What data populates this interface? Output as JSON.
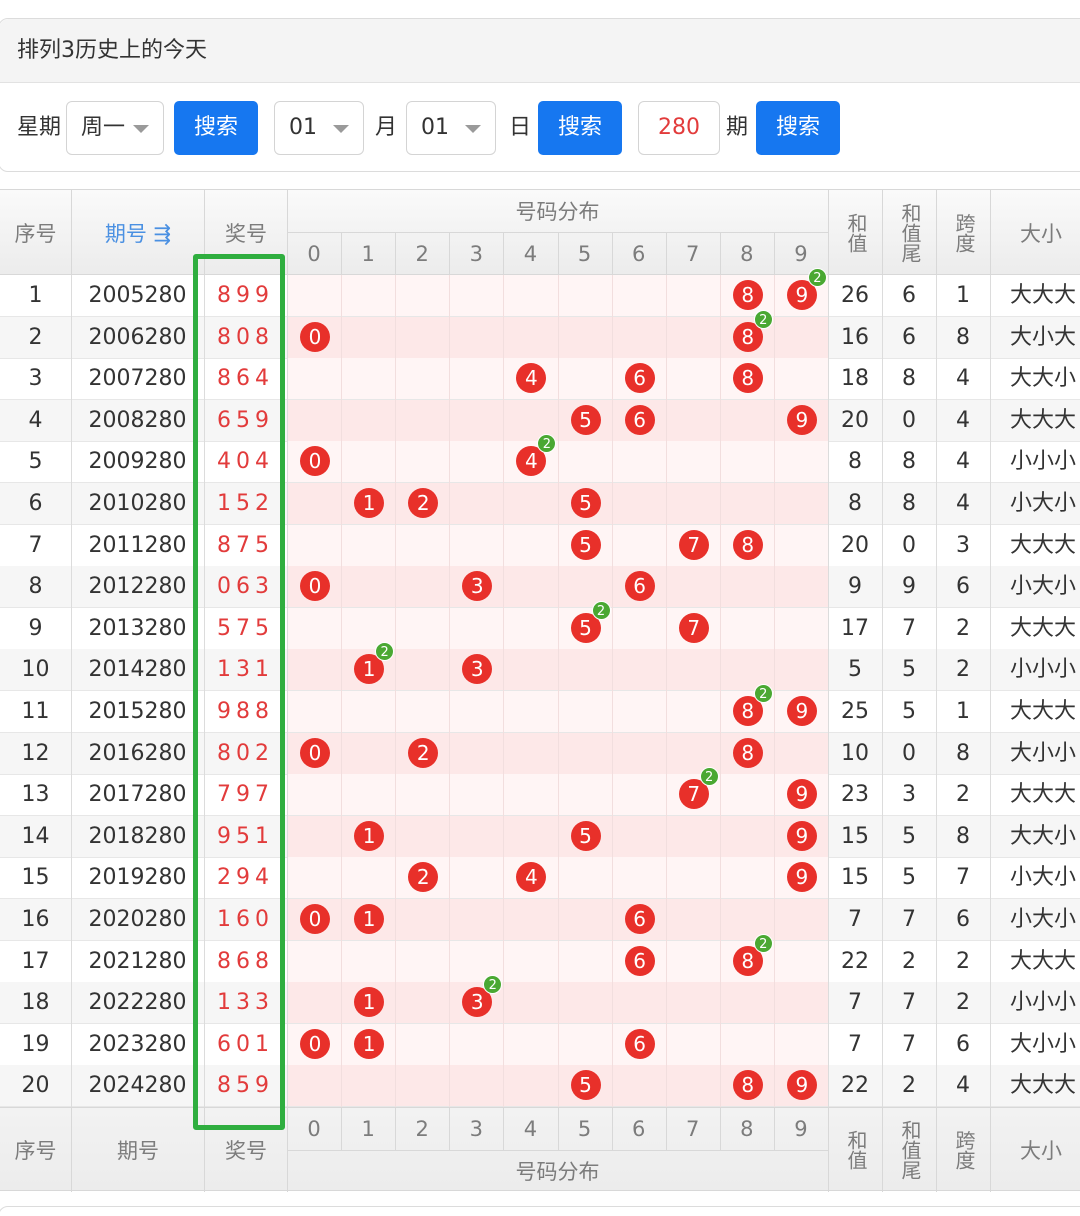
{
  "panel": {
    "title": "排列3历史上的今天",
    "week_label": "星期",
    "week_value": "周一",
    "search_label": "搜索",
    "month_value": "01",
    "month_label": "月",
    "day_value": "01",
    "day_label": "日",
    "issue_value": "280",
    "issue_label": "期"
  },
  "table": {
    "headers": {
      "seq": "序号",
      "issue": "期号 ⇶",
      "prize": "奖号",
      "dist": "号码分布",
      "sum": "和值",
      "sum_tail": "和值尾",
      "span": "跨度",
      "size": "大小"
    },
    "footers": {
      "seq": "序号",
      "issue": "期号",
      "prize": "奖号",
      "dist": "号码分布",
      "sum": "和值",
      "sum_tail": "和值尾",
      "span": "跨度",
      "size": "大小"
    },
    "digits": [
      "0",
      "1",
      "2",
      "3",
      "4",
      "5",
      "6",
      "7",
      "8",
      "9"
    ],
    "rows": [
      {
        "seq": "1",
        "issue": "2005280",
        "prize": "899",
        "sum": "26",
        "tail": "6",
        "span": "1",
        "size": "大大大"
      },
      {
        "seq": "2",
        "issue": "2006280",
        "prize": "808",
        "sum": "16",
        "tail": "6",
        "span": "8",
        "size": "大小大"
      },
      {
        "seq": "3",
        "issue": "2007280",
        "prize": "864",
        "sum": "18",
        "tail": "8",
        "span": "4",
        "size": "大大小"
      },
      {
        "seq": "4",
        "issue": "2008280",
        "prize": "659",
        "sum": "20",
        "tail": "0",
        "span": "4",
        "size": "大大大"
      },
      {
        "seq": "5",
        "issue": "2009280",
        "prize": "404",
        "sum": "8",
        "tail": "8",
        "span": "4",
        "size": "小小小"
      },
      {
        "seq": "6",
        "issue": "2010280",
        "prize": "152",
        "sum": "8",
        "tail": "8",
        "span": "4",
        "size": "小大小"
      },
      {
        "seq": "7",
        "issue": "2011280",
        "prize": "875",
        "sum": "20",
        "tail": "0",
        "span": "3",
        "size": "大大大"
      },
      {
        "seq": "8",
        "issue": "2012280",
        "prize": "063",
        "sum": "9",
        "tail": "9",
        "span": "6",
        "size": "小大小"
      },
      {
        "seq": "9",
        "issue": "2013280",
        "prize": "575",
        "sum": "17",
        "tail": "7",
        "span": "2",
        "size": "大大大"
      },
      {
        "seq": "10",
        "issue": "2014280",
        "prize": "131",
        "sum": "5",
        "tail": "5",
        "span": "2",
        "size": "小小小"
      },
      {
        "seq": "11",
        "issue": "2015280",
        "prize": "988",
        "sum": "25",
        "tail": "5",
        "span": "1",
        "size": "大大大"
      },
      {
        "seq": "12",
        "issue": "2016280",
        "prize": "802",
        "sum": "10",
        "tail": "0",
        "span": "8",
        "size": "大小小"
      },
      {
        "seq": "13",
        "issue": "2017280",
        "prize": "797",
        "sum": "23",
        "tail": "3",
        "span": "2",
        "size": "大大大"
      },
      {
        "seq": "14",
        "issue": "2018280",
        "prize": "951",
        "sum": "15",
        "tail": "5",
        "span": "8",
        "size": "大大小"
      },
      {
        "seq": "15",
        "issue": "2019280",
        "prize": "294",
        "sum": "15",
        "tail": "5",
        "span": "7",
        "size": "小大小"
      },
      {
        "seq": "16",
        "issue": "2020280",
        "prize": "160",
        "sum": "7",
        "tail": "7",
        "span": "6",
        "size": "小大小"
      },
      {
        "seq": "17",
        "issue": "2021280",
        "prize": "868",
        "sum": "22",
        "tail": "2",
        "span": "2",
        "size": "大大大"
      },
      {
        "seq": "18",
        "issue": "2022280",
        "prize": "133",
        "sum": "7",
        "tail": "7",
        "span": "2",
        "size": "小小小"
      },
      {
        "seq": "19",
        "issue": "2023280",
        "prize": "601",
        "sum": "7",
        "tail": "7",
        "span": "6",
        "size": "大小小"
      },
      {
        "seq": "20",
        "issue": "2024280",
        "prize": "859",
        "sum": "22",
        "tail": "2",
        "span": "4",
        "size": "大大大"
      }
    ]
  },
  "colors": {
    "accent_blue": "#1677f0",
    "ball_red": "#e8302a",
    "dup_green": "#4aa832",
    "highlight_green": "#2fae3f",
    "prize_red": "#e23b3b"
  }
}
